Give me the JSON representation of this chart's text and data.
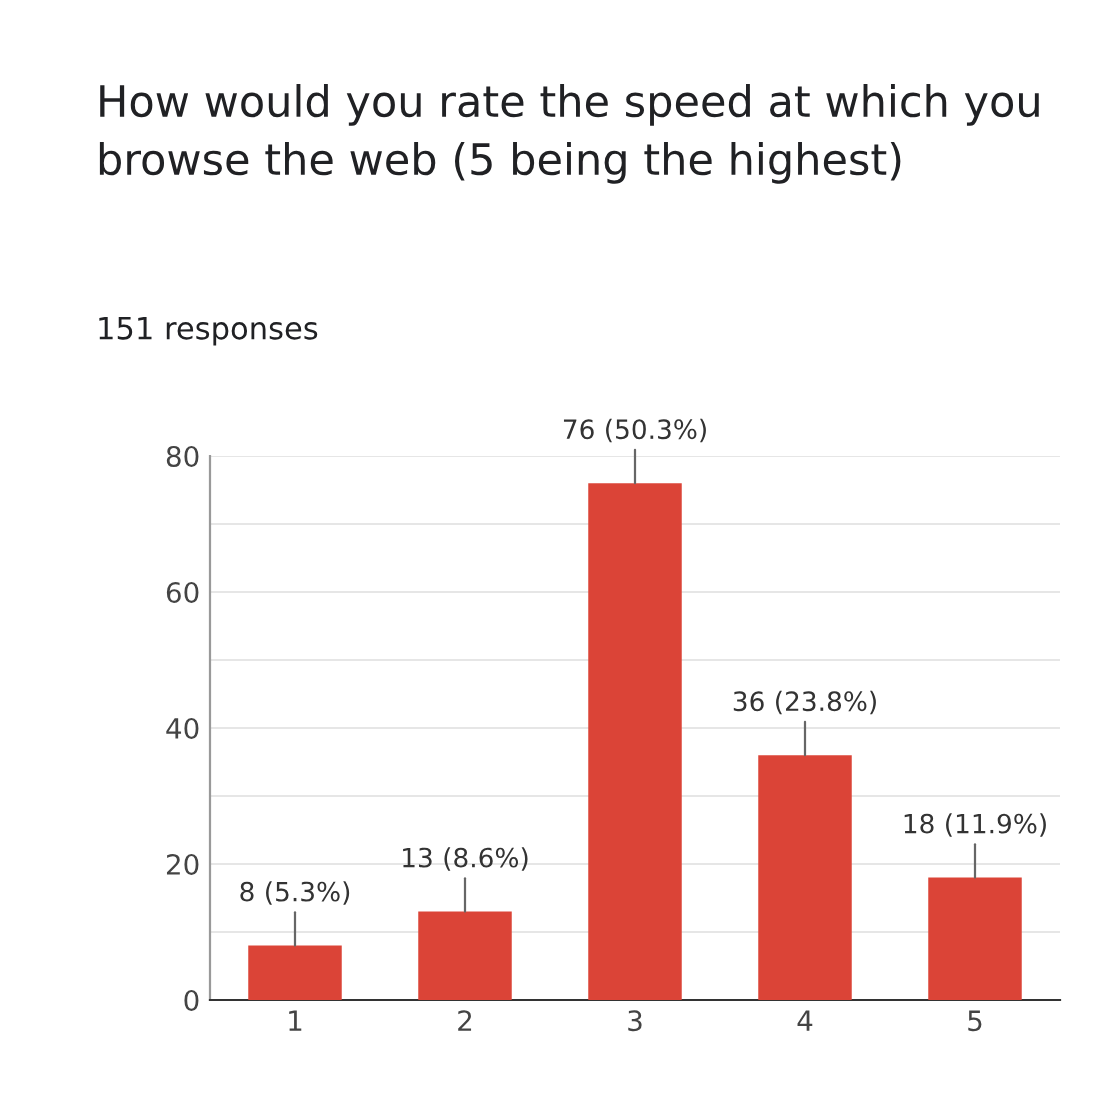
{
  "chart_data": {
    "type": "bar",
    "title": "How would you rate the speed at which you browse the web (5 being the highest)",
    "subtitle": "151 responses",
    "categories": [
      "1",
      "2",
      "3",
      "4",
      "5"
    ],
    "values": [
      8,
      13,
      76,
      36,
      18
    ],
    "color": "#db4437",
    "value_labels": [
      "8 (5.3%)",
      "13 (8.6%)",
      "76 (50.3%)",
      "36 (23.8%)",
      "18 (11.9%)"
    ],
    "ylim": [
      0,
      80
    ],
    "yticks": [
      0,
      {
        "value": 10,
        "label": null
      },
      20,
      {
        "value": 30,
        "label": null
      },
      40,
      {
        "value": 50,
        "label": null
      },
      60,
      {
        "value": 70,
        "label": null
      },
      80
    ],
    "grid": "y",
    "legend": false
  }
}
